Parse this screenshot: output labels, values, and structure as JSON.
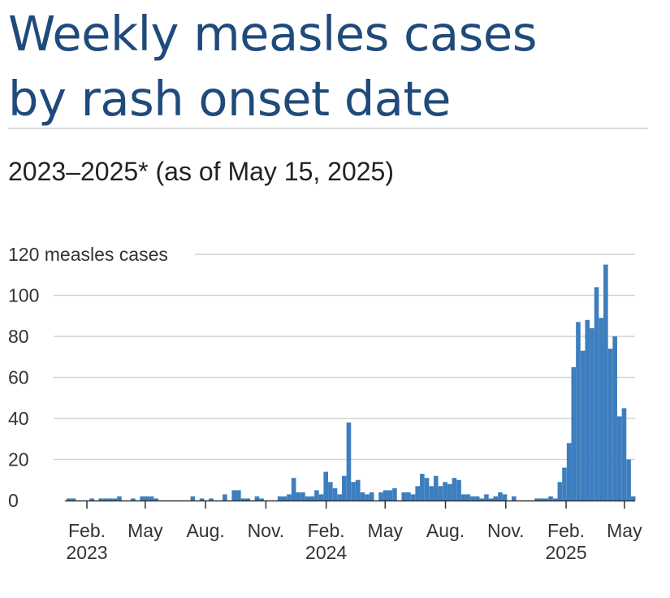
{
  "title_line1": "Weekly measles cases",
  "title_line2": "by rash onset date",
  "subtitle": "2023–2025* (as of May 15, 2025)",
  "chart_data": {
    "type": "bar",
    "ylabel": "measles cases",
    "ylim": [
      0,
      120
    ],
    "y_ticks": [
      "0",
      "20",
      "40",
      "60",
      "80",
      "100",
      "120"
    ],
    "x_ticks": [
      {
        "label": "Feb.",
        "year": "2023",
        "date": "2023-02-01"
      },
      {
        "label": "May",
        "year": "",
        "date": "2023-05-01"
      },
      {
        "label": "Aug.",
        "year": "",
        "date": "2023-08-01"
      },
      {
        "label": "Nov.",
        "year": "",
        "date": "2023-11-01"
      },
      {
        "label": "Feb.",
        "year": "2024",
        "date": "2024-02-01"
      },
      {
        "label": "May",
        "year": "",
        "date": "2024-05-01"
      },
      {
        "label": "Aug.",
        "year": "",
        "date": "2024-08-01"
      },
      {
        "label": "Nov.",
        "year": "",
        "date": "2024-11-01"
      },
      {
        "label": "Feb.",
        "year": "2025",
        "date": "2025-02-01"
      },
      {
        "label": "May",
        "year": "",
        "date": "2025-05-01"
      }
    ],
    "grid": true,
    "bar_color": "#3d7ebf",
    "first_week": "2023-01-01",
    "values": [
      1,
      1,
      0,
      0,
      0,
      1,
      0,
      1,
      1,
      1,
      1,
      2,
      0,
      0,
      1,
      0,
      2,
      2,
      2,
      1,
      0,
      0,
      0,
      0,
      0,
      0,
      0,
      2,
      0,
      1,
      0,
      1,
      0,
      0,
      3,
      0,
      5,
      5,
      1,
      1,
      0,
      2,
      1,
      0,
      0,
      0,
      2,
      2,
      3,
      11,
      4,
      4,
      2,
      2,
      5,
      3,
      14,
      9,
      6,
      3,
      12,
      38,
      9,
      10,
      4,
      3,
      4,
      0,
      4,
      5,
      5,
      6,
      0,
      4,
      4,
      3,
      7,
      13,
      11,
      7,
      12,
      7,
      9,
      8,
      11,
      10,
      3,
      3,
      2,
      2,
      1,
      3,
      1,
      2,
      4,
      3,
      0,
      2,
      0,
      0,
      0,
      0,
      1,
      1,
      1,
      2,
      1,
      9,
      16,
      28,
      65,
      87,
      73,
      88,
      84,
      104,
      89,
      115,
      74,
      80,
      41,
      45,
      20,
      2
    ]
  }
}
